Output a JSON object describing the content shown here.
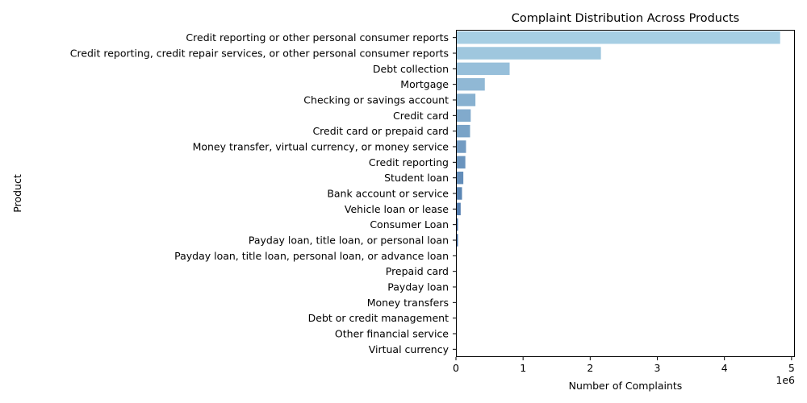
{
  "chart_data": {
    "type": "bar",
    "orientation": "horizontal",
    "title": "Complaint Distribution Across Products",
    "xlabel": "Number of Complaints",
    "ylabel": "Product",
    "x_offset_label": "1e6",
    "xlim": [
      0,
      5.05
    ],
    "xticks": [
      0,
      1,
      2,
      3,
      4,
      5
    ],
    "xtick_labels": [
      "0",
      "1",
      "2",
      "3",
      "4",
      "5"
    ],
    "categories": [
      "Credit reporting or other personal consumer reports",
      "Credit reporting, credit repair services, or other personal consumer reports",
      "Debt collection",
      "Mortgage",
      "Checking or savings account",
      "Credit card",
      "Credit card or prepaid card",
      "Money transfer, virtual currency, or money service",
      "Credit reporting",
      "Student loan",
      "Bank account or service",
      "Vehicle loan or lease",
      "Consumer Loan",
      "Payday loan, title loan, or personal loan",
      "Payday loan, title loan, personal loan, or advance loan",
      "Prepaid card",
      "Payday loan",
      "Money transfers",
      "Debt or credit management",
      "Other financial service",
      "Virtual currency"
    ],
    "values": [
      4.83,
      2.16,
      0.8,
      0.43,
      0.29,
      0.22,
      0.21,
      0.15,
      0.14,
      0.11,
      0.09,
      0.07,
      0.03,
      0.03,
      0.01,
      0.01,
      0.01,
      0.005,
      0.003,
      0.001,
      0.0001
    ],
    "colors": [
      "#a6cee3",
      "#9fc7de",
      "#97bfda",
      "#90b8d5",
      "#88b1d0",
      "#81aacc",
      "#79a3c7",
      "#729bc2",
      "#6a94be",
      "#638db9",
      "#5b86b4",
      "#547eb0",
      "#4c77ab",
      "#4570a6",
      "#3d68a2",
      "#36619d",
      "#2e5a98",
      "#275394",
      "#1f4b8f",
      "#18448a",
      "#103d86"
    ],
    "grid": false,
    "legend": "none"
  }
}
